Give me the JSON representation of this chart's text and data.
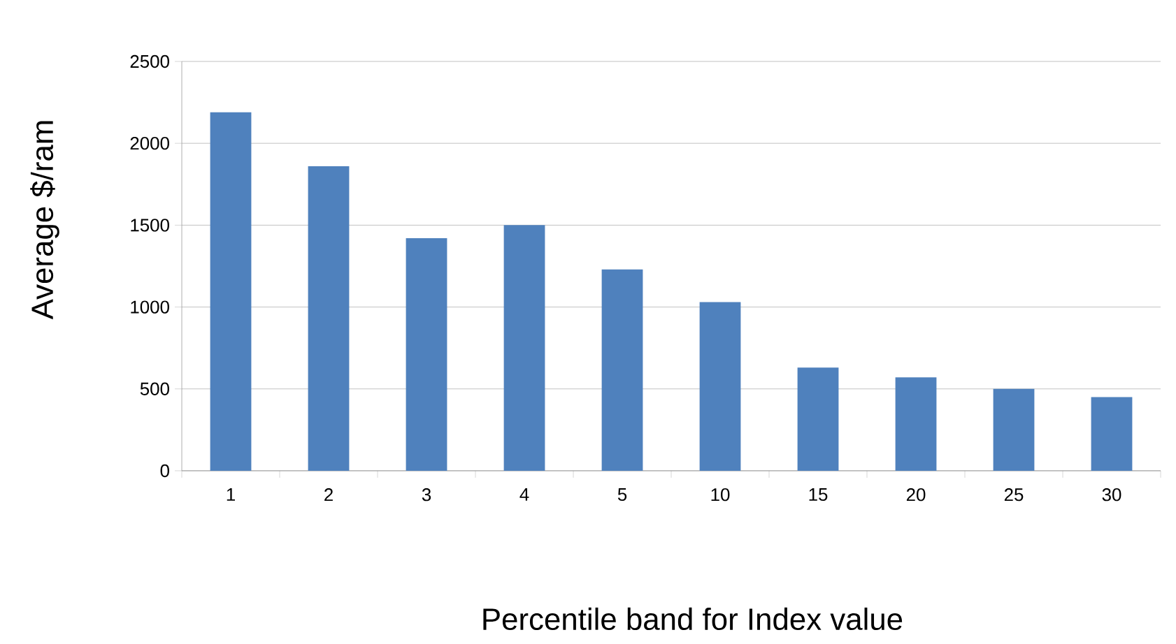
{
  "chart_data": {
    "type": "bar",
    "xlabel": "Percentile band for Index value",
    "ylabel": "Average $/ram",
    "categories": [
      "1",
      "2",
      "3",
      "4",
      "5",
      "10",
      "15",
      "20",
      "25",
      "30"
    ],
    "values": [
      2190,
      1860,
      1420,
      1500,
      1230,
      1030,
      630,
      570,
      500,
      450
    ],
    "color": "#4f81bd",
    "ylim": [
      0,
      2500
    ],
    "yticks": [
      0,
      500,
      1000,
      1500,
      2000,
      2500
    ],
    "grid": "y"
  }
}
